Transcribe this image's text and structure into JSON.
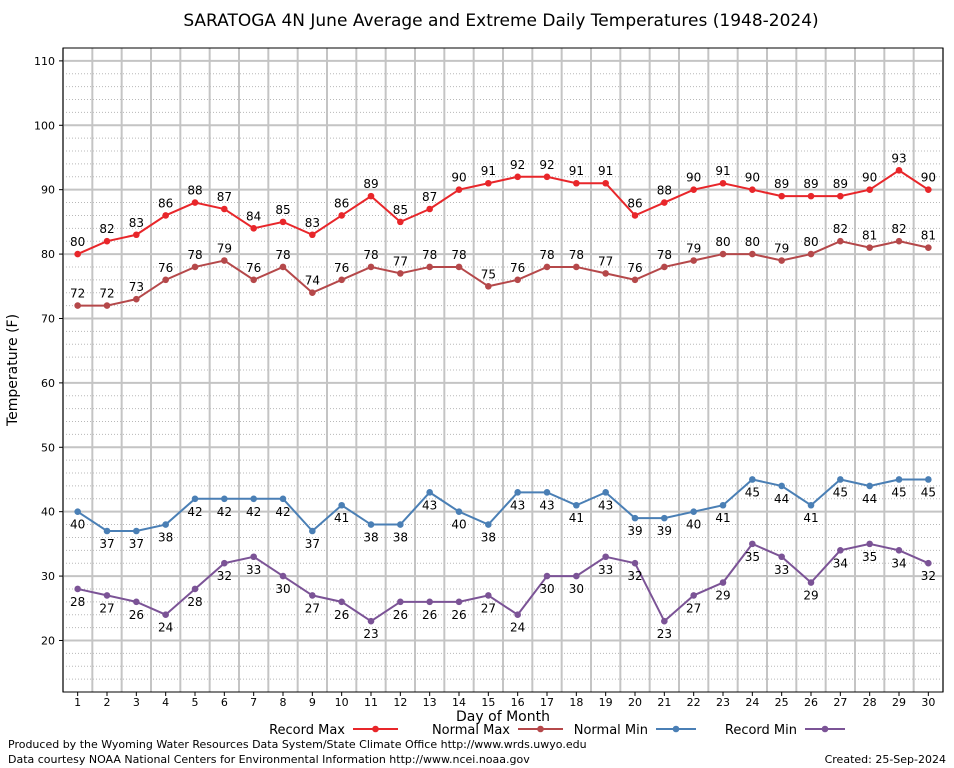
{
  "chart_data": {
    "type": "line",
    "title": "SARATOGA 4N June Average and Extreme Daily Temperatures (1948-2024)",
    "xlabel": "Day of Month",
    "ylabel": "Temperature (F)",
    "x": [
      1,
      2,
      3,
      4,
      5,
      6,
      7,
      8,
      9,
      10,
      11,
      12,
      13,
      14,
      15,
      16,
      17,
      18,
      19,
      20,
      21,
      22,
      23,
      24,
      25,
      26,
      27,
      28,
      29,
      30
    ],
    "xlim": [
      0.5,
      30.5
    ],
    "ylim": [
      12,
      112
    ],
    "y_ticks": [
      20,
      30,
      40,
      50,
      60,
      70,
      80,
      90,
      100,
      110
    ],
    "grid": true,
    "legend_position": "bottom",
    "series": [
      {
        "name": "Record Max",
        "color": "#e8262a",
        "values": [
          80,
          82,
          83,
          86,
          88,
          87,
          84,
          85,
          83,
          86,
          89,
          85,
          87,
          90,
          91,
          92,
          92,
          91,
          91,
          86,
          88,
          90,
          91,
          90,
          89,
          89,
          89,
          90,
          93,
          90
        ]
      },
      {
        "name": "Normal Max",
        "color": "#b5484a",
        "values": [
          72,
          72,
          73,
          76,
          78,
          79,
          76,
          78,
          74,
          76,
          78,
          77,
          78,
          78,
          75,
          76,
          78,
          78,
          77,
          76,
          78,
          79,
          80,
          80,
          79,
          80,
          82,
          81,
          82,
          81
        ]
      },
      {
        "name": "Normal Min",
        "color": "#4a7fb5",
        "values": [
          40,
          37,
          37,
          38,
          42,
          42,
          42,
          42,
          37,
          41,
          38,
          38,
          43,
          40,
          38,
          43,
          43,
          41,
          43,
          39,
          39,
          40,
          41,
          45,
          44,
          41,
          45,
          44,
          45,
          45
        ]
      },
      {
        "name": "Record Min",
        "color": "#7b5396",
        "values": [
          28,
          27,
          26,
          24,
          28,
          32,
          33,
          30,
          27,
          26,
          23,
          26,
          26,
          26,
          27,
          24,
          30,
          30,
          33,
          32,
          23,
          27,
          29,
          35,
          33,
          29,
          34,
          35,
          34,
          32
        ]
      }
    ]
  },
  "footer": {
    "produced_by": "Produced by the Wyoming Water Resources Data System/State Climate Office http://www.wrds.uwyo.edu",
    "courtesy": "Data courtesy NOAA National Centers for Environmental Information http://www.ncei.noaa.gov",
    "created": "Created:  25-Sep-2024"
  }
}
